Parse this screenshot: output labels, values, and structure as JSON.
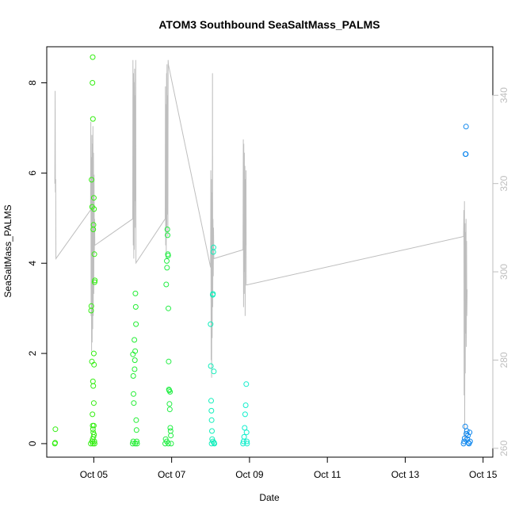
{
  "chart_data": {
    "type": "scatter",
    "title": "ATOM3 Southbound SeaSaltMass_PALMS",
    "xlabel": "Date",
    "ylabel": "SeaSaltMass_PALMS",
    "x_ticks": [
      "Oct 05",
      "Oct 07",
      "Oct 09",
      "Oct 11",
      "Oct 13",
      "Oct 15"
    ],
    "y_ticks": [
      "0",
      "2",
      "4",
      "6",
      "8"
    ],
    "y2_ticks": [
      "260",
      "280",
      "300",
      "320",
      "340"
    ],
    "xlim": [
      "2017-10-03T19:00",
      "2017-10-15T06:00"
    ],
    "ylim": [
      -0.3,
      8.8
    ],
    "y2lim": [
      258,
      351
    ],
    "axis_color": "#000000",
    "y2_axis_color": "#bebebe",
    "secondary_line_color": "#bebebe",
    "secondary_line_note": "",
    "scatter_series": [
      {
        "color": "#33ee11",
        "points": [
          [
            "2017-10-04T00:00",
            0.0
          ],
          [
            "2017-10-04T00:10",
            0.02
          ],
          [
            "2017-10-04T00:20",
            0.32
          ],
          [
            "2017-10-04T22:10",
            0.0
          ],
          [
            "2017-10-04T22:20",
            2.95
          ],
          [
            "2017-10-04T22:30",
            3.05
          ],
          [
            "2017-10-04T22:40",
            5.85
          ],
          [
            "2017-10-04T22:50",
            1.82
          ],
          [
            "2017-10-04T23:00",
            5.25
          ],
          [
            "2017-10-04T23:10",
            8.0
          ],
          [
            "2017-10-04T23:20",
            8.57
          ],
          [
            "2017-10-04T23:30",
            7.2
          ],
          [
            "2017-10-04T23:40",
            4.75
          ],
          [
            "2017-10-04T23:50",
            4.85
          ],
          [
            "2017-10-05T00:00",
            5.45
          ],
          [
            "2017-10-05T00:10",
            5.2
          ],
          [
            "2017-10-05T00:20",
            4.2
          ],
          [
            "2017-10-05T00:30",
            3.58
          ],
          [
            "2017-10-05T00:40",
            3.62
          ],
          [
            "2017-10-04T23:30",
            1.38
          ],
          [
            "2017-10-04T23:40",
            1.28
          ],
          [
            "2017-10-05T00:00",
            2.0
          ],
          [
            "2017-10-05T00:10",
            1.75
          ],
          [
            "2017-10-05T00:00",
            0.9
          ],
          [
            "2017-10-04T23:10",
            0.65
          ],
          [
            "2017-10-04T23:20",
            0.4
          ],
          [
            "2017-10-04T23:30",
            0.32
          ],
          [
            "2017-10-04T23:40",
            0.25
          ],
          [
            "2017-10-05T00:00",
            0.4
          ],
          [
            "2017-10-05T00:10",
            0.2
          ],
          [
            "2017-10-04T23:00",
            0.05
          ],
          [
            "2017-10-04T23:20",
            0.1
          ],
          [
            "2017-10-04T23:50",
            0.15
          ],
          [
            "2017-10-05T00:20",
            0.05
          ],
          [
            "2017-10-05T00:30",
            0.0
          ],
          [
            "2017-10-04T23:30",
            0.0
          ]
        ]
      },
      {
        "color": "#22ee33",
        "points": [
          [
            "2017-10-06T00:00",
            0.0
          ],
          [
            "2017-10-06T00:10",
            1.98
          ],
          [
            "2017-10-06T00:20",
            1.5
          ],
          [
            "2017-10-06T00:30",
            1.1
          ],
          [
            "2017-10-06T00:40",
            0.9
          ],
          [
            "2017-10-06T01:00",
            2.3
          ],
          [
            "2017-10-06T01:10",
            1.65
          ],
          [
            "2017-10-06T01:20",
            1.85
          ],
          [
            "2017-10-06T01:30",
            2.05
          ],
          [
            "2017-10-06T01:40",
            3.33
          ],
          [
            "2017-10-06T01:50",
            3.03
          ],
          [
            "2017-10-06T02:00",
            2.65
          ],
          [
            "2017-10-06T02:10",
            0.52
          ],
          [
            "2017-10-06T02:20",
            0.3
          ],
          [
            "2017-10-06T02:30",
            0.05
          ],
          [
            "2017-10-06T00:20",
            0.05
          ],
          [
            "2017-10-06T02:40",
            0.0
          ],
          [
            "2017-10-06T01:30",
            0.0
          ]
        ]
      },
      {
        "color": "#22ee44",
        "points": [
          [
            "2017-10-06T20:00",
            0.0
          ],
          [
            "2017-10-06T20:20",
            0.1
          ],
          [
            "2017-10-06T20:40",
            3.53
          ],
          [
            "2017-10-06T21:00",
            4.05
          ],
          [
            "2017-10-06T21:10",
            3.9
          ],
          [
            "2017-10-06T21:20",
            4.75
          ],
          [
            "2017-10-06T21:30",
            4.62
          ],
          [
            "2017-10-06T21:40",
            4.2
          ],
          [
            "2017-10-06T21:50",
            4.17
          ],
          [
            "2017-10-06T22:00",
            3.0
          ],
          [
            "2017-10-06T22:10",
            1.82
          ],
          [
            "2017-10-06T22:20",
            1.2
          ],
          [
            "2017-10-06T22:30",
            1.18
          ],
          [
            "2017-10-06T22:40",
            0.88
          ],
          [
            "2017-10-06T22:50",
            0.76
          ],
          [
            "2017-10-06T23:00",
            1.15
          ],
          [
            "2017-10-06T23:10",
            0.35
          ],
          [
            "2017-10-06T23:20",
            0.28
          ],
          [
            "2017-10-06T23:30",
            0.18
          ],
          [
            "2017-10-06T21:00",
            0.05
          ],
          [
            "2017-10-06T22:00",
            0.0
          ],
          [
            "2017-10-06T23:40",
            0.0
          ]
        ]
      },
      {
        "color": "#11eebb",
        "points": [
          [
            "2017-10-08T00:00",
            2.65
          ],
          [
            "2017-10-08T00:10",
            1.72
          ],
          [
            "2017-10-08T00:20",
            0.95
          ],
          [
            "2017-10-08T00:30",
            0.73
          ],
          [
            "2017-10-08T00:40",
            0.52
          ],
          [
            "2017-10-08T00:50",
            0.28
          ],
          [
            "2017-10-08T01:00",
            0.1
          ],
          [
            "2017-10-08T01:20",
            3.3
          ],
          [
            "2017-10-08T01:30",
            3.32
          ],
          [
            "2017-10-08T01:40",
            4.25
          ],
          [
            "2017-10-08T01:50",
            4.35
          ],
          [
            "2017-10-08T02:00",
            1.6
          ],
          [
            "2017-10-08T02:10",
            0.02
          ],
          [
            "2017-10-08T02:20",
            0.0
          ],
          [
            "2017-10-08T00:40",
            0.0
          ],
          [
            "2017-10-08T01:30",
            0.05
          ]
        ]
      },
      {
        "color": "#11eecc",
        "points": [
          [
            "2017-10-08T20:00",
            0.0
          ],
          [
            "2017-10-08T20:20",
            0.05
          ],
          [
            "2017-10-08T20:40",
            0.15
          ],
          [
            "2017-10-08T21:00",
            0.35
          ],
          [
            "2017-10-08T21:20",
            0.65
          ],
          [
            "2017-10-08T21:40",
            0.85
          ],
          [
            "2017-10-08T22:00",
            1.32
          ],
          [
            "2017-10-08T22:10",
            0.25
          ],
          [
            "2017-10-08T22:20",
            0.05
          ],
          [
            "2017-10-08T22:30",
            0.0
          ]
        ]
      },
      {
        "color": "#1188ee",
        "points": [
          [
            "2017-10-14T12:00",
            0.0
          ],
          [
            "2017-10-14T12:20",
            0.05
          ],
          [
            "2017-10-14T12:40",
            0.12
          ],
          [
            "2017-10-14T13:00",
            0.38
          ],
          [
            "2017-10-14T13:10",
            6.42
          ],
          [
            "2017-10-14T13:20",
            6.42
          ],
          [
            "2017-10-14T13:30",
            7.03
          ],
          [
            "2017-10-14T13:40",
            0.22
          ],
          [
            "2017-10-14T14:00",
            0.28
          ],
          [
            "2017-10-14T14:20",
            0.1
          ],
          [
            "2017-10-14T14:40",
            0.18
          ],
          [
            "2017-10-14T15:00",
            0.02
          ],
          [
            "2017-10-14T15:20",
            0.0
          ],
          [
            "2017-10-14T15:40",
            0.25
          ],
          [
            "2017-10-14T16:00",
            0.05
          ]
        ]
      }
    ],
    "secondary_line": [
      [
        "2017-10-04T00:00",
        320
      ],
      [
        "2017-10-04T00:10",
        341
      ],
      [
        "2017-10-04T00:20",
        318
      ],
      [
        "2017-10-04T00:30",
        321
      ],
      [
        "2017-10-04T00:40",
        303
      ],
      [
        "2017-10-04T22:00",
        314
      ],
      [
        "2017-10-04T22:10",
        334
      ],
      [
        "2017-10-04T22:20",
        290
      ],
      [
        "2017-10-04T22:30",
        326
      ],
      [
        "2017-10-04T22:40",
        282
      ],
      [
        "2017-10-04T22:50",
        331
      ],
      [
        "2017-10-04T23:00",
        284
      ],
      [
        "2017-10-04T23:10",
        329
      ],
      [
        "2017-10-04T23:20",
        287
      ],
      [
        "2017-10-04T23:30",
        333
      ],
      [
        "2017-10-04T23:40",
        290
      ],
      [
        "2017-10-04T23:50",
        327
      ],
      [
        "2017-10-05T00:00",
        295
      ],
      [
        "2017-10-05T00:10",
        322
      ],
      [
        "2017-10-05T00:20",
        304
      ],
      [
        "2017-10-05T00:30",
        312
      ],
      [
        "2017-10-05T00:40",
        306
      ],
      [
        "2017-10-06T00:00",
        312
      ],
      [
        "2017-10-06T00:10",
        348
      ],
      [
        "2017-10-06T00:20",
        306
      ],
      [
        "2017-10-06T00:30",
        345
      ],
      [
        "2017-10-06T00:40",
        303
      ],
      [
        "2017-10-06T00:50",
        343
      ],
      [
        "2017-10-06T01:00",
        305
      ],
      [
        "2017-10-06T01:10",
        346
      ],
      [
        "2017-10-06T01:20",
        310
      ],
      [
        "2017-10-06T01:30",
        340
      ],
      [
        "2017-10-06T01:40",
        316
      ],
      [
        "2017-10-06T01:50",
        348
      ],
      [
        "2017-10-06T02:00",
        302
      ],
      [
        "2017-10-06T20:00",
        312
      ],
      [
        "2017-10-06T20:10",
        342
      ],
      [
        "2017-10-06T20:20",
        306
      ],
      [
        "2017-10-06T20:30",
        338
      ],
      [
        "2017-10-06T20:40",
        303
      ],
      [
        "2017-10-06T20:50",
        345
      ],
      [
        "2017-10-06T21:00",
        310
      ],
      [
        "2017-10-06T21:10",
        347
      ],
      [
        "2017-10-06T21:20",
        313
      ],
      [
        "2017-10-06T21:30",
        340
      ],
      [
        "2017-10-06T21:40",
        308
      ],
      [
        "2017-10-06T21:50",
        348
      ],
      [
        "2017-10-06T22:00",
        347
      ],
      [
        "2017-10-08T00:00",
        301
      ],
      [
        "2017-10-08T00:10",
        323
      ],
      [
        "2017-10-08T00:20",
        280
      ],
      [
        "2017-10-08T00:30",
        321
      ],
      [
        "2017-10-08T00:40",
        276
      ],
      [
        "2017-10-08T00:50",
        318
      ],
      [
        "2017-10-08T01:00",
        285
      ],
      [
        "2017-10-08T01:10",
        345
      ],
      [
        "2017-10-08T01:20",
        292
      ],
      [
        "2017-10-08T01:30",
        312
      ],
      [
        "2017-10-08T01:40",
        299
      ],
      [
        "2017-10-08T01:50",
        310
      ],
      [
        "2017-10-08T02:00",
        303
      ],
      [
        "2017-10-08T20:00",
        305
      ],
      [
        "2017-10-08T20:10",
        330
      ],
      [
        "2017-10-08T20:20",
        292
      ],
      [
        "2017-10-08T20:30",
        329
      ],
      [
        "2017-10-08T20:40",
        295
      ],
      [
        "2017-10-08T20:50",
        327
      ],
      [
        "2017-10-08T21:00",
        300
      ],
      [
        "2017-10-08T21:10",
        324
      ],
      [
        "2017-10-08T21:20",
        290
      ],
      [
        "2017-10-08T21:30",
        321
      ],
      [
        "2017-10-08T21:40",
        306
      ],
      [
        "2017-10-08T21:50",
        323
      ],
      [
        "2017-10-08T22:00",
        297
      ],
      [
        "2017-10-14T12:00",
        308
      ],
      [
        "2017-10-14T12:10",
        314
      ],
      [
        "2017-10-14T12:20",
        272
      ],
      [
        "2017-10-14T12:30",
        316
      ],
      [
        "2017-10-14T12:40",
        262
      ],
      [
        "2017-10-14T12:50",
        311
      ],
      [
        "2017-10-14T13:00",
        277
      ],
      [
        "2017-10-14T13:10",
        309
      ],
      [
        "2017-10-14T13:20",
        286
      ],
      [
        "2017-10-14T13:30",
        312
      ],
      [
        "2017-10-14T13:40",
        283
      ],
      [
        "2017-10-14T13:50",
        307
      ],
      [
        "2017-10-14T14:00",
        290
      ],
      [
        "2017-10-14T14:10",
        296
      ]
    ]
  }
}
